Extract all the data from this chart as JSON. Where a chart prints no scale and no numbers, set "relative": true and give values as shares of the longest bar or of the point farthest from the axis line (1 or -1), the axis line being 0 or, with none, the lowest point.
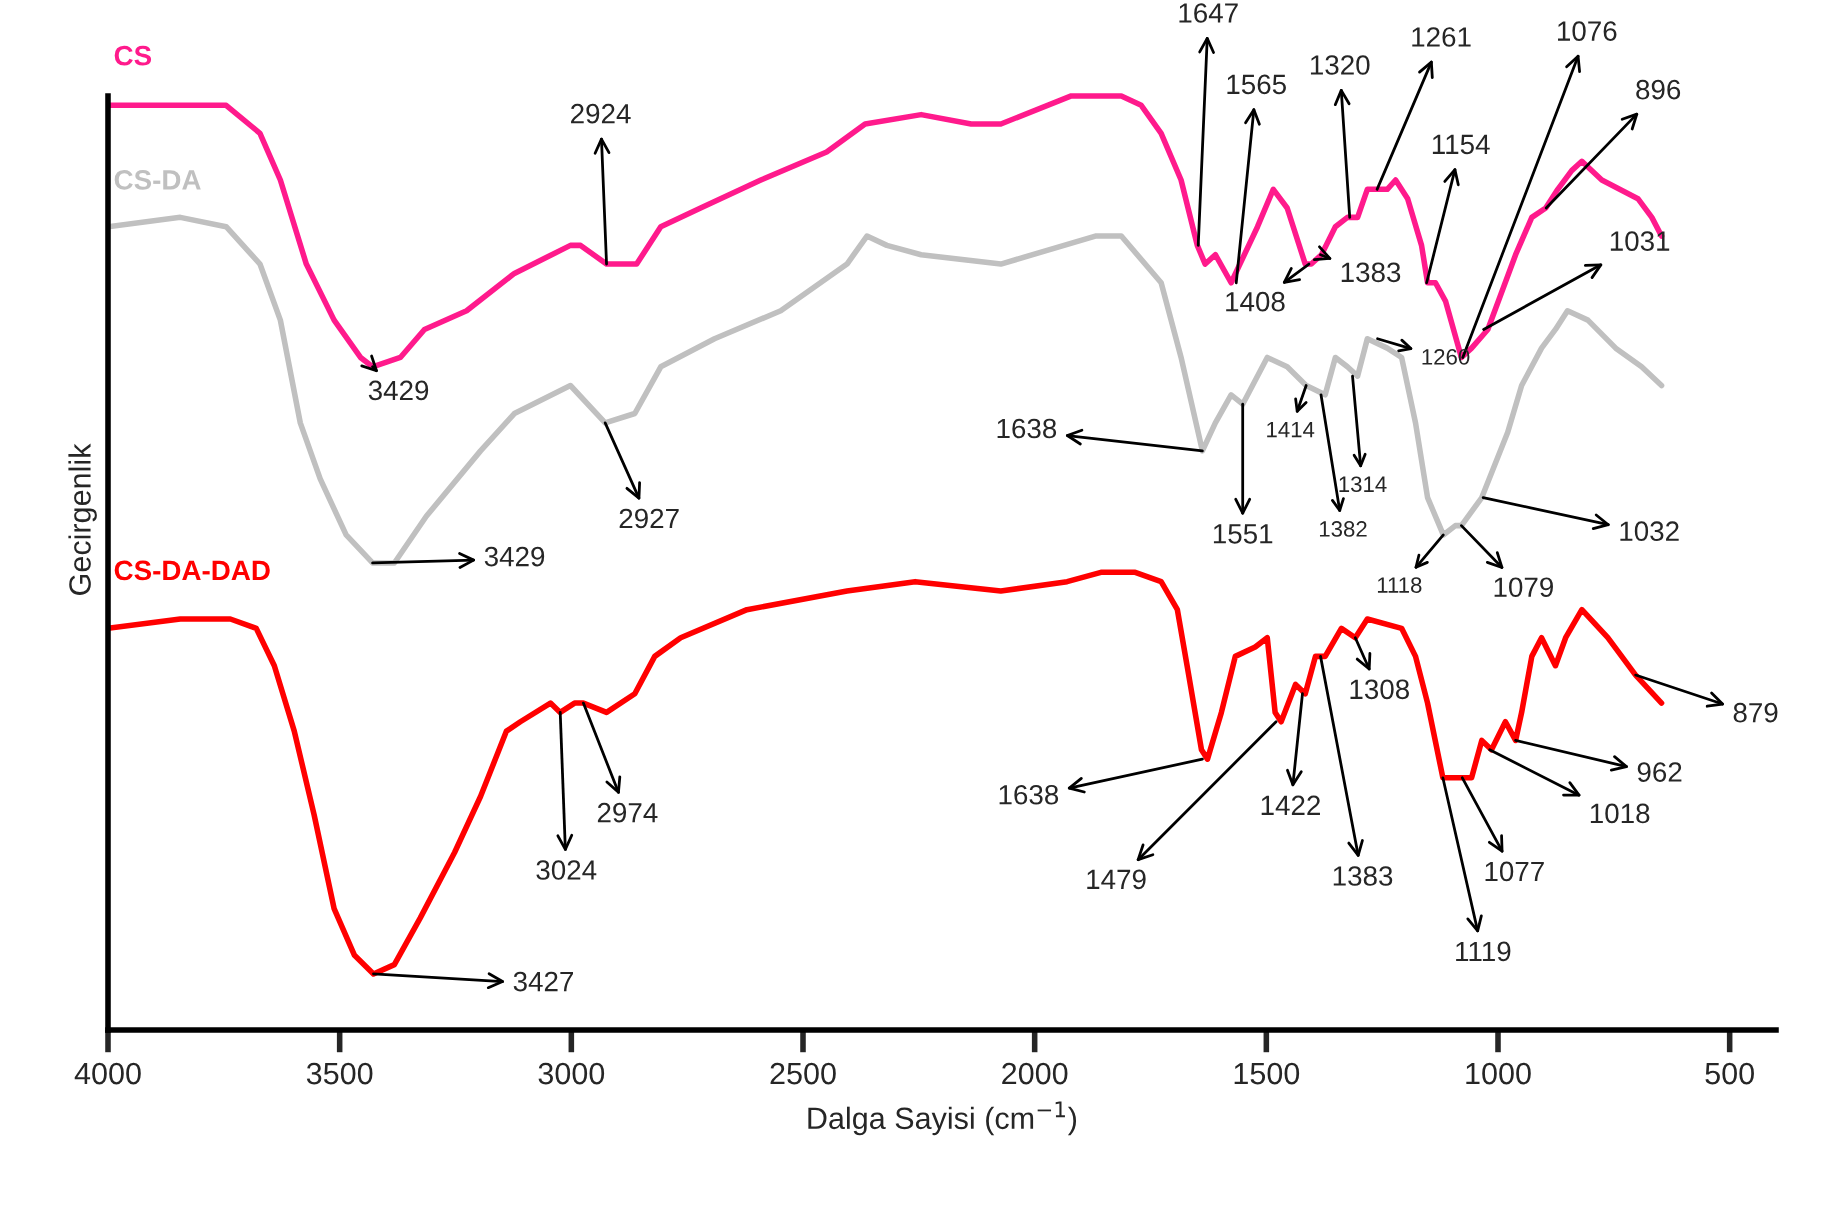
{
  "chart_data": {
    "type": "line",
    "relative": true,
    "xlabel": "Dalga Sayisi (cm$^{−1}$)",
    "ylabel": "Gecirgenlik",
    "xlim": [
      4000,
      400
    ],
    "xticks": [
      4000,
      3500,
      3000,
      2500,
      2000,
      1500,
      1000,
      500
    ],
    "tick_labels": "x",
    "legend": false,
    "series": [
      {
        "name": "CS",
        "color": "#ff1a8c",
        "x": [
          4000,
          3844,
          3745,
          3672,
          3628,
          3572,
          3512,
          3455,
          3429,
          3369,
          3317,
          3226,
          3123,
          3002,
          2980,
          2924,
          2859,
          2807,
          2721,
          2591,
          2449,
          2366,
          2245,
          2137,
          2073,
          1921,
          1813,
          1770,
          1727,
          1684,
          1649,
          1632,
          1610,
          1576,
          1519,
          1485,
          1455,
          1416,
          1403,
          1381,
          1351,
          1325,
          1303,
          1282,
          1252,
          1239,
          1221,
          1195,
          1165,
          1152,
          1135,
          1113,
          1079,
          1057,
          1022,
          962,
          927,
          897,
          871,
          841,
          819,
          776,
          698,
          668,
          647
        ],
        "values": [
          0.99,
          0.99,
          0.99,
          0.96,
          0.91,
          0.82,
          0.76,
          0.72,
          0.71,
          0.72,
          0.75,
          0.77,
          0.81,
          0.84,
          0.84,
          0.82,
          0.82,
          0.86,
          0.88,
          0.91,
          0.94,
          0.97,
          0.98,
          0.97,
          0.97,
          1.0,
          1.0,
          0.99,
          0.96,
          0.91,
          0.84,
          0.82,
          0.83,
          0.8,
          0.86,
          0.9,
          0.88,
          0.82,
          0.82,
          0.83,
          0.86,
          0.87,
          0.87,
          0.9,
          0.9,
          0.9,
          0.91,
          0.89,
          0.84,
          0.8,
          0.8,
          0.78,
          0.72,
          0.73,
          0.75,
          0.83,
          0.87,
          0.88,
          0.9,
          0.92,
          0.93,
          0.91,
          0.89,
          0.87,
          0.85
        ]
      },
      {
        "name": "CS-DA",
        "color": "#c0c0c0",
        "x": [
          4000,
          3844,
          3745,
          3672,
          3628,
          3585,
          3542,
          3486,
          3429,
          3382,
          3313,
          3196,
          3123,
          3002,
          2927,
          2863,
          2807,
          2691,
          2548,
          2405,
          2362,
          2319,
          2245,
          2073,
          1869,
          1813,
          1727,
          1684,
          1638,
          1610,
          1576,
          1551,
          1498,
          1455,
          1414,
          1373,
          1351,
          1325,
          1303,
          1282,
          1239,
          1208,
          1178,
          1152,
          1118,
          1092,
          1079,
          1035,
          979,
          949,
          906,
          876,
          850,
          806,
          746,
          690,
          647
        ],
        "values": [
          0.86,
          0.87,
          0.86,
          0.82,
          0.76,
          0.65,
          0.59,
          0.53,
          0.5,
          0.5,
          0.55,
          0.62,
          0.66,
          0.69,
          0.65,
          0.66,
          0.71,
          0.74,
          0.77,
          0.82,
          0.85,
          0.84,
          0.83,
          0.82,
          0.85,
          0.85,
          0.8,
          0.72,
          0.62,
          0.65,
          0.68,
          0.67,
          0.72,
          0.71,
          0.69,
          0.68,
          0.72,
          0.71,
          0.7,
          0.74,
          0.73,
          0.72,
          0.65,
          0.57,
          0.53,
          0.54,
          0.54,
          0.57,
          0.64,
          0.69,
          0.73,
          0.75,
          0.77,
          0.76,
          0.73,
          0.71,
          0.69
        ]
      },
      {
        "name": "CS-DA-DAD",
        "color": "#ff0000",
        "x": [
          4000,
          3844,
          3736,
          3680,
          3641,
          3598,
          3555,
          3512,
          3468,
          3427,
          3382,
          3326,
          3252,
          3196,
          3140,
          3110,
          3045,
          3024,
          2993,
          2974,
          2924,
          2863,
          2820,
          2764,
          2621,
          2405,
          2258,
          2073,
          1930,
          1857,
          1783,
          1727,
          1692,
          1671,
          1640,
          1627,
          1597,
          1567,
          1524,
          1498,
          1481,
          1468,
          1437,
          1416,
          1394,
          1373,
          1338,
          1308,
          1282,
          1208,
          1178,
          1152,
          1119,
          1079,
          1057,
          1035,
          1014,
          984,
          962,
          949,
          927,
          906,
          876,
          854,
          819,
          763,
          703,
          647
        ],
        "values": [
          0.43,
          0.44,
          0.44,
          0.43,
          0.39,
          0.32,
          0.23,
          0.13,
          0.08,
          0.06,
          0.07,
          0.12,
          0.19,
          0.25,
          0.32,
          0.33,
          0.35,
          0.34,
          0.35,
          0.35,
          0.34,
          0.36,
          0.4,
          0.42,
          0.45,
          0.47,
          0.48,
          0.47,
          0.48,
          0.49,
          0.49,
          0.48,
          0.45,
          0.39,
          0.3,
          0.29,
          0.34,
          0.4,
          0.41,
          0.42,
          0.34,
          0.33,
          0.37,
          0.36,
          0.4,
          0.4,
          0.43,
          0.42,
          0.44,
          0.43,
          0.4,
          0.35,
          0.27,
          0.27,
          0.27,
          0.31,
          0.3,
          0.33,
          0.31,
          0.34,
          0.4,
          0.42,
          0.39,
          0.42,
          0.45,
          0.42,
          0.38,
          0.35
        ]
      }
    ],
    "annotations": [
      {
        "text": "3429",
        "x": 3429,
        "y": 0.71
      },
      {
        "text": "2924",
        "x": 2924,
        "y": 0.82
      },
      {
        "text": "1647",
        "x": 1647,
        "y": 0.84
      },
      {
        "text": "1565",
        "x": 1565,
        "y": 0.8
      },
      {
        "text": "1320",
        "x": 1320,
        "y": 0.87
      },
      {
        "text": "1261",
        "x": 1261,
        "y": 0.9
      },
      {
        "text": "1154",
        "x": 1154,
        "y": 0.8
      },
      {
        "text": "1076",
        "x": 1076,
        "y": 0.72
      },
      {
        "text": "896",
        "x": 896,
        "y": 0.88
      },
      {
        "text": "1408",
        "x": 1408,
        "y": 0.82
      },
      {
        "text": "1383",
        "x": 1383,
        "y": 0.83
      },
      {
        "text": "1031",
        "x": 1031,
        "y": 0.75
      },
      {
        "text": "3429",
        "x": 3429,
        "y": 0.5
      },
      {
        "text": "2927",
        "x": 2927,
        "y": 0.65
      },
      {
        "text": "1638",
        "x": 1638,
        "y": 0.62
      },
      {
        "text": "1551",
        "x": 1551,
        "y": 0.67
      },
      {
        "text": "1414",
        "x": 1414,
        "y": 0.69
      },
      {
        "text": "1382",
        "x": 1382,
        "y": 0.68
      },
      {
        "text": "1314",
        "x": 1314,
        "y": 0.7
      },
      {
        "text": "1260",
        "x": 1260,
        "y": 0.74
      },
      {
        "text": "1118",
        "x": 1118,
        "y": 0.53
      },
      {
        "text": "1079",
        "x": 1079,
        "y": 0.54
      },
      {
        "text": "1032",
        "x": 1032,
        "y": 0.57
      },
      {
        "text": "3024",
        "x": 3024,
        "y": 0.34
      },
      {
        "text": "2974",
        "x": 2974,
        "y": 0.35
      },
      {
        "text": "3427",
        "x": 3427,
        "y": 0.06
      },
      {
        "text": "1638",
        "x": 1638,
        "y": 0.29
      },
      {
        "text": "1479",
        "x": 1479,
        "y": 0.33
      },
      {
        "text": "1422",
        "x": 1422,
        "y": 0.36
      },
      {
        "text": "1383",
        "x": 1383,
        "y": 0.4
      },
      {
        "text": "1308",
        "x": 1308,
        "y": 0.42
      },
      {
        "text": "1119",
        "x": 1119,
        "y": 0.27
      },
      {
        "text": "1077",
        "x": 1077,
        "y": 0.27
      },
      {
        "text": "1018",
        "x": 1018,
        "y": 0.3
      },
      {
        "text": "962",
        "x": 962,
        "y": 0.31
      },
      {
        "text": "879",
        "x": 703,
        "y": 0.38
      }
    ]
  }
}
